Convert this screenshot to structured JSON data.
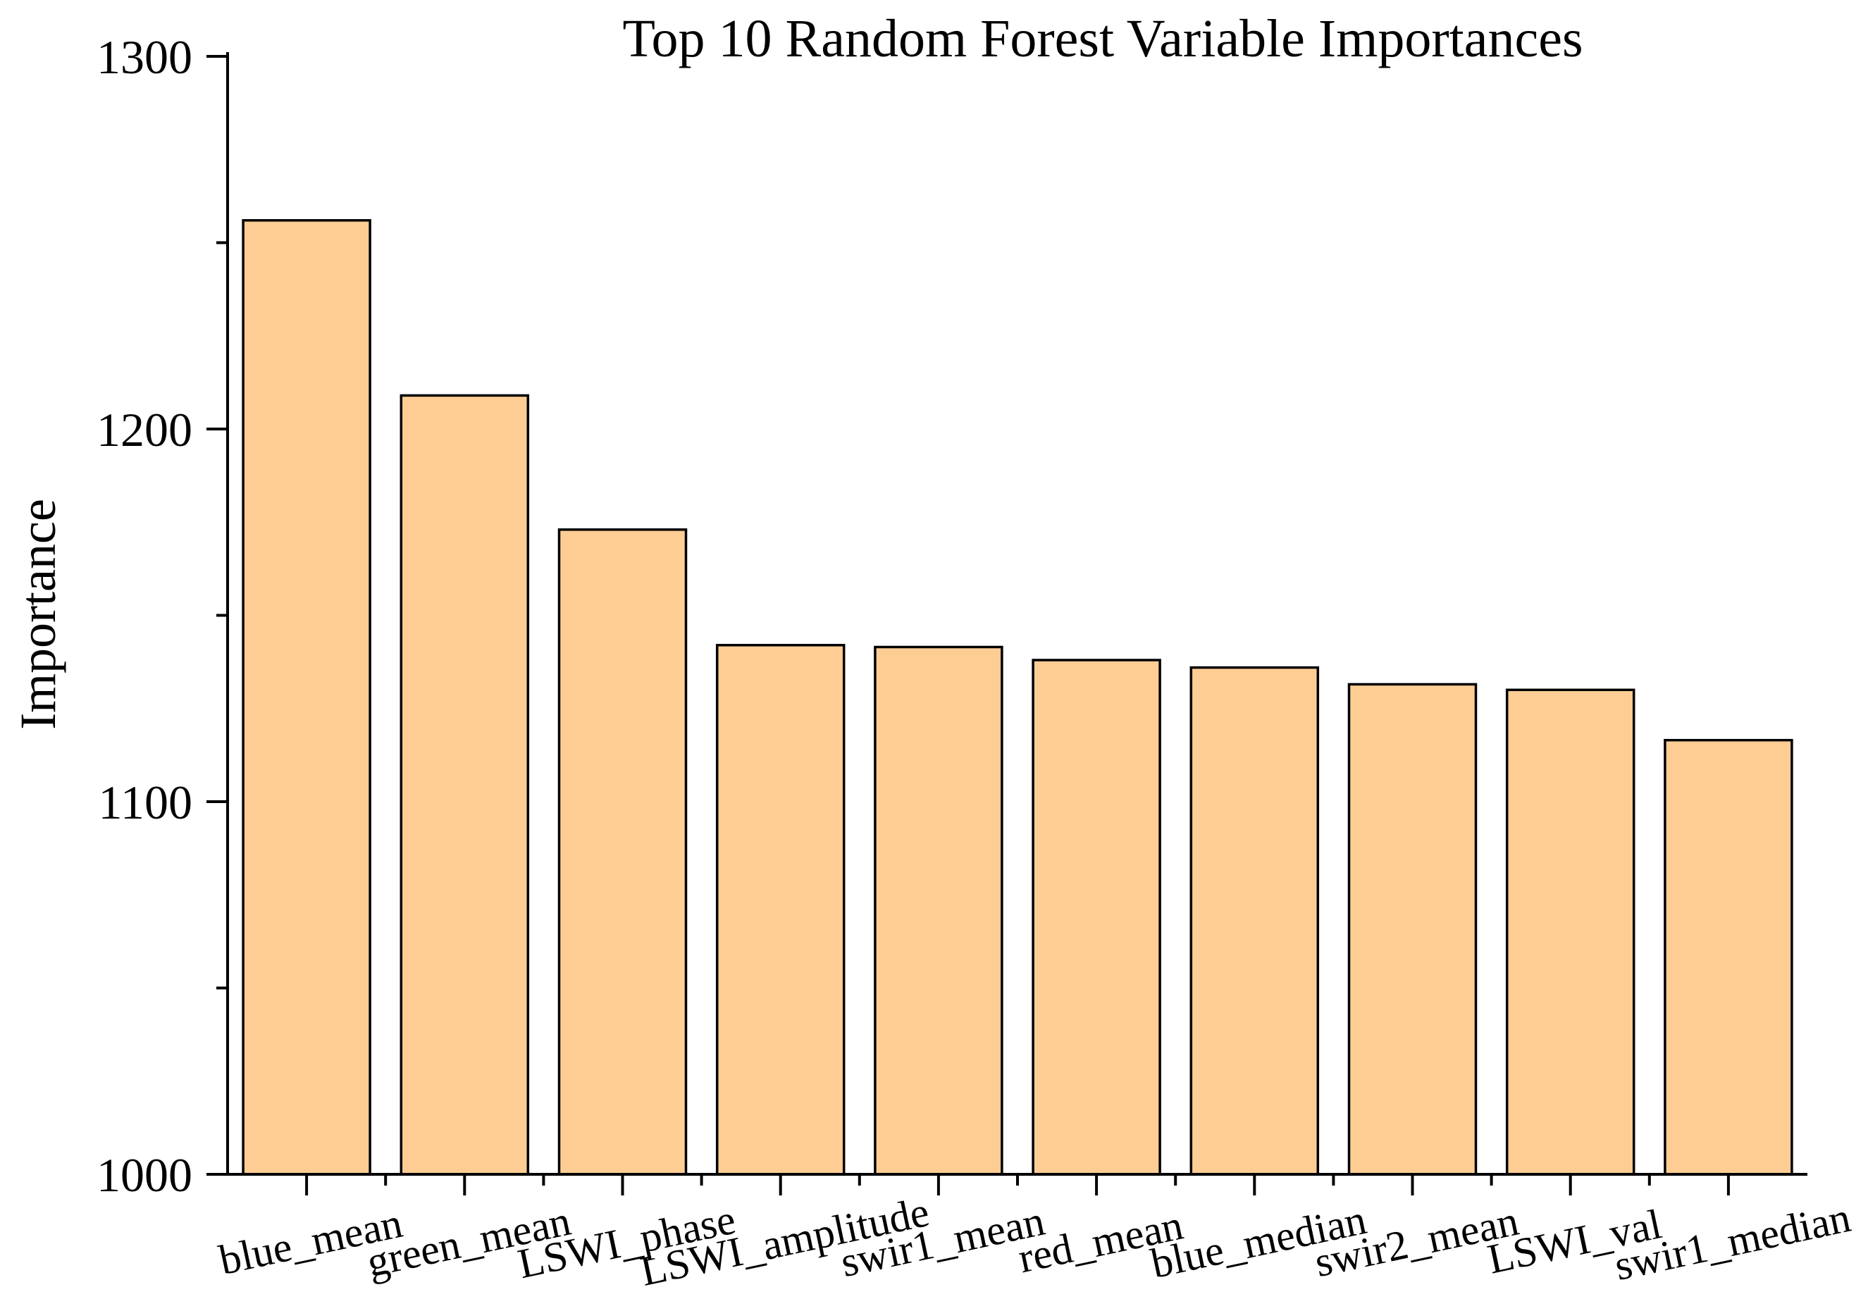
{
  "chart_data": {
    "type": "bar",
    "title": "Top 10 Random Forest Variable Importances",
    "xlabel": "",
    "ylabel": "Importance",
    "ylim": [
      1000,
      1300
    ],
    "y_ticks": [
      1000,
      1100,
      1200,
      1300
    ],
    "y_minor_ticks": [
      1050,
      1150,
      1250
    ],
    "categories": [
      "blue_mean",
      "green_mean",
      "LSWI_phase",
      "LSWI_amplitude",
      "swir1_mean",
      "red_mean",
      "blue_median",
      "swir2_mean",
      "LSWI_val",
      "swir1_median"
    ],
    "values": [
      1256,
      1209,
      1173,
      1142,
      1141.5,
      1138,
      1136,
      1131.5,
      1130,
      1116.5
    ],
    "bar_color": "#FECD94",
    "grid": false,
    "legend": "none"
  }
}
